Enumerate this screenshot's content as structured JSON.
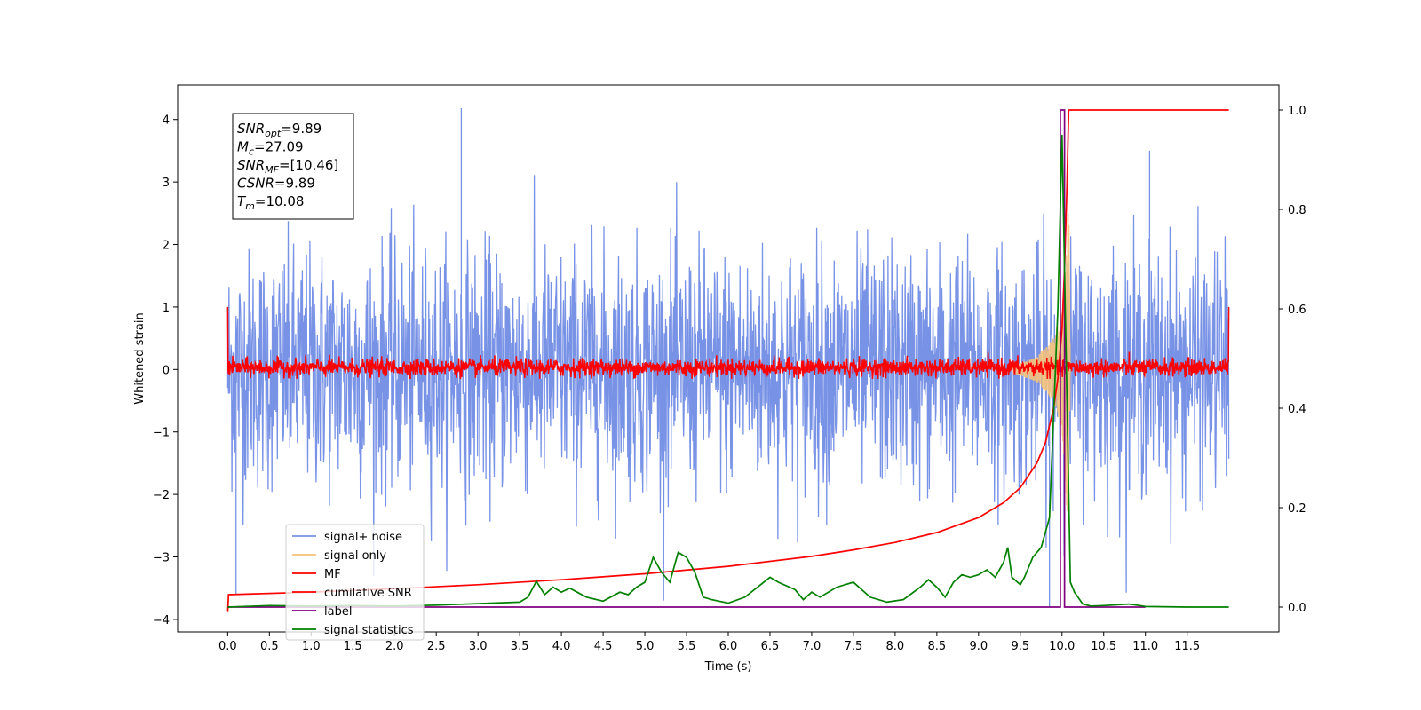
{
  "chart_data": {
    "type": "line",
    "xlabel": "Time (s)",
    "ylabel": "Whitened strain",
    "xlim": [
      -0.6,
      12.6
    ],
    "ylim": [
      -4.2,
      4.55
    ],
    "y2lim": [
      -0.05,
      1.05
    ],
    "x_ticks": [
      0.0,
      0.5,
      1.0,
      1.5,
      2.0,
      2.5,
      3.0,
      3.5,
      4.0,
      4.5,
      5.0,
      5.5,
      6.0,
      6.5,
      7.0,
      7.5,
      8.0,
      8.5,
      9.0,
      9.5,
      10.0,
      10.5,
      11.0,
      11.5
    ],
    "x_tick_labels": [
      "0.0",
      "0.5",
      "1.0",
      "1.5",
      "2.0",
      "2.5",
      "3.0",
      "3.5",
      "4.0",
      "4.5",
      "5.0",
      "5.5",
      "6.0",
      "6.5",
      "7.0",
      "7.5",
      "8.0",
      "8.5",
      "9.0",
      "9.5",
      "10.0",
      "10.5",
      "11.0",
      "11.5"
    ],
    "y_ticks": [
      4,
      3,
      2,
      1,
      0,
      -1,
      -2,
      -3,
      -4
    ],
    "y_tick_labels": [
      "4",
      "3",
      "2",
      "1",
      "0",
      "−1",
      "−2",
      "−3",
      "−4"
    ],
    "y2_ticks": [
      1.0,
      0.8,
      0.6,
      0.4,
      0.2,
      0.0
    ],
    "y2_tick_labels": [
      "1.0",
      "0.8",
      "0.6",
      "0.4",
      "0.2",
      "0.0"
    ],
    "grid": false,
    "legend_position": "lower-left",
    "annotation": {
      "lines": [
        {
          "sym": "SNR",
          "sub": "opt",
          "value": "=9.89"
        },
        {
          "sym": "M",
          "sub": "c",
          "value": "=27.09"
        },
        {
          "sym": "SNR",
          "sub": "MF",
          "value": "=[10.46]"
        },
        {
          "sym": "CSNR",
          "sub": "",
          "value": "=9.89"
        },
        {
          "sym": "T",
          "sub": "m",
          "value": "=10.08"
        }
      ]
    },
    "series": [
      {
        "name": "signal+ noise",
        "axis": "left",
        "color": "#7892e6",
        "noise_range": [
          -3.7,
          4.18
        ],
        "typical_range": [
          -2.6,
          2.6
        ],
        "notable_peaks": [
          {
            "x": 2.8,
            "y": 4.18
          },
          {
            "x": 11.05,
            "y": 3.5
          },
          {
            "x": 0.1,
            "y": -3.6
          },
          {
            "x": 9.85,
            "y": -3.8
          }
        ]
      },
      {
        "name": "signal only",
        "axis": "left",
        "color": "#f5c27a",
        "description_points": {
          "x": [
            9.4,
            9.7,
            9.9,
            10.0,
            10.05,
            10.08,
            10.1
          ],
          "envelope": [
            0.05,
            0.2,
            0.5,
            1.0,
            2.0,
            3.0,
            0.0
          ]
        }
      },
      {
        "name": "MF",
        "axis": "left",
        "color": "#ff0000",
        "noise_range": [
          -0.15,
          0.3
        ],
        "edge_values": {
          "start": 1.0,
          "end": 1.0
        }
      },
      {
        "name": "cumilative SNR",
        "axis": "right",
        "color": "#ff0000",
        "x": [
          0.0,
          0.01,
          1.0,
          2.0,
          3.0,
          4.0,
          5.0,
          6.0,
          7.0,
          7.5,
          8.0,
          8.5,
          9.0,
          9.3,
          9.5,
          9.7,
          9.8,
          9.9,
          9.95,
          10.0,
          10.03,
          10.06,
          10.08,
          10.5,
          11.0,
          12.0
        ],
        "y": [
          -0.01,
          0.025,
          0.03,
          0.037,
          0.045,
          0.055,
          0.067,
          0.082,
          0.102,
          0.115,
          0.13,
          0.15,
          0.18,
          0.21,
          0.24,
          0.29,
          0.33,
          0.4,
          0.46,
          0.56,
          0.68,
          0.85,
          1.0,
          1.0,
          1.0,
          1.0
        ]
      },
      {
        "name": "label",
        "axis": "right",
        "color": "#800080",
        "x": [
          0.0,
          9.98,
          9.98,
          10.03,
          10.03,
          10.17,
          10.17,
          11.0
        ],
        "y": [
          0.0,
          0.0,
          1.0,
          1.0,
          0.0,
          0.0,
          0.0,
          0.0
        ]
      },
      {
        "name": "signal statistics",
        "axis": "right",
        "color": "#008000",
        "x": [
          0.0,
          0.5,
          1.0,
          1.5,
          2.0,
          2.5,
          3.0,
          3.5,
          3.6,
          3.7,
          3.8,
          3.9,
          4.0,
          4.1,
          4.3,
          4.5,
          4.7,
          4.8,
          4.9,
          5.0,
          5.1,
          5.2,
          5.3,
          5.4,
          5.5,
          5.6,
          5.7,
          5.8,
          6.0,
          6.2,
          6.5,
          6.6,
          6.8,
          6.9,
          7.0,
          7.1,
          7.3,
          7.5,
          7.7,
          7.9,
          8.1,
          8.3,
          8.4,
          8.5,
          8.6,
          8.7,
          8.8,
          8.9,
          9.0,
          9.1,
          9.2,
          9.3,
          9.35,
          9.4,
          9.5,
          9.55,
          9.65,
          9.75,
          9.85,
          9.95,
          10.0,
          10.05,
          10.1,
          10.15,
          10.25,
          10.35,
          10.5,
          10.8,
          10.9,
          11.0,
          11.5,
          12.0
        ],
        "y": [
          0.0,
          0.003,
          0.002,
          0.003,
          0.002,
          0.004,
          0.007,
          0.01,
          0.02,
          0.052,
          0.025,
          0.04,
          0.03,
          0.038,
          0.02,
          0.012,
          0.03,
          0.025,
          0.04,
          0.05,
          0.1,
          0.07,
          0.05,
          0.11,
          0.1,
          0.07,
          0.02,
          0.015,
          0.008,
          0.02,
          0.06,
          0.05,
          0.035,
          0.015,
          0.03,
          0.02,
          0.04,
          0.05,
          0.02,
          0.01,
          0.015,
          0.04,
          0.055,
          0.04,
          0.02,
          0.05,
          0.065,
          0.06,
          0.065,
          0.075,
          0.06,
          0.09,
          0.12,
          0.06,
          0.045,
          0.06,
          0.1,
          0.12,
          0.18,
          0.6,
          0.95,
          0.5,
          0.05,
          0.03,
          0.006,
          0.002,
          0.003,
          0.006,
          0.004,
          0.001,
          0.0,
          0.0
        ]
      }
    ]
  }
}
